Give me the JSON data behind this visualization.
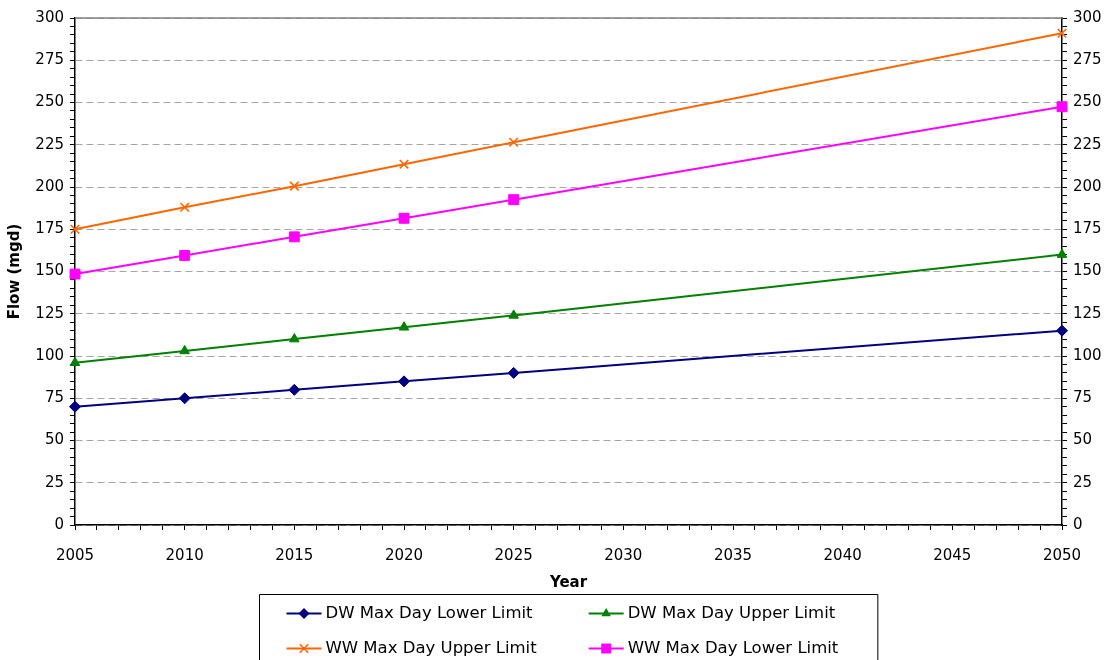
{
  "chart_data": {
    "type": "line",
    "xlabel": "Year",
    "ylabel": "Flow (mgd)",
    "x": [
      2005,
      2010,
      2015,
      2020,
      2025,
      2050
    ],
    "series": [
      {
        "name": "DW Max Day Lower Limit",
        "color": "#000080",
        "marker": "diamond",
        "values": [
          70,
          75,
          80,
          85,
          90,
          115
        ]
      },
      {
        "name": "DW Max Day Upper Limit",
        "color": "#008000",
        "marker": "triangle",
        "values": [
          96,
          103,
          110,
          117,
          124,
          160
        ]
      },
      {
        "name": "WW Max Day Upper Limit",
        "color": "#ff6600",
        "marker": "cross",
        "values": [
          175,
          188,
          200.5,
          213.5,
          226.5,
          291
        ]
      },
      {
        "name": "WW Max Day Lower Limit",
        "color": "#ff00ff",
        "marker": "square",
        "values": [
          148.5,
          159.5,
          170.5,
          181.5,
          192.5,
          247.5
        ]
      }
    ],
    "xlim": [
      2005,
      2050
    ],
    "xticks": [
      2005,
      {
        "value": 2006,
        "label": null
      },
      {
        "value": 2007,
        "label": null
      },
      {
        "value": 2008,
        "label": null
      },
      {
        "value": 2009,
        "label": null
      },
      2010,
      {
        "value": 2011,
        "label": null
      },
      {
        "value": 2012,
        "label": null
      },
      {
        "value": 2013,
        "label": null
      },
      {
        "value": 2014,
        "label": null
      },
      2015,
      {
        "value": 2016,
        "label": null
      },
      {
        "value": 2017,
        "label": null
      },
      {
        "value": 2018,
        "label": null
      },
      {
        "value": 2019,
        "label": null
      },
      2020,
      {
        "value": 2021,
        "label": null
      },
      {
        "value": 2022,
        "label": null
      },
      {
        "value": 2023,
        "label": null
      },
      {
        "value": 2024,
        "label": null
      },
      2025,
      {
        "value": 2026,
        "label": null
      },
      {
        "value": 2027,
        "label": null
      },
      {
        "value": 2028,
        "label": null
      },
      {
        "value": 2029,
        "label": null
      },
      2030,
      {
        "value": 2031,
        "label": null
      },
      {
        "value": 2032,
        "label": null
      },
      {
        "value": 2033,
        "label": null
      },
      {
        "value": 2034,
        "label": null
      },
      2035,
      {
        "value": 2036,
        "label": null
      },
      {
        "value": 2037,
        "label": null
      },
      {
        "value": 2038,
        "label": null
      },
      {
        "value": 2039,
        "label": null
      },
      2040,
      {
        "value": 2041,
        "label": null
      },
      {
        "value": 2042,
        "label": null
      },
      {
        "value": 2043,
        "label": null
      },
      {
        "value": 2044,
        "label": null
      },
      2045,
      {
        "value": 2046,
        "label": null
      },
      {
        "value": 2047,
        "label": null
      },
      {
        "value": 2048,
        "label": null
      },
      {
        "value": 2049,
        "label": null
      },
      2050
    ],
    "ylim": [
      0,
      300
    ],
    "yticks": [
      0,
      {
        "value": 5,
        "label": null
      },
      {
        "value": 10,
        "label": null
      },
      {
        "value": 15,
        "label": null
      },
      {
        "value": 20,
        "label": null
      },
      25,
      {
        "value": 30,
        "label": null
      },
      {
        "value": 35,
        "label": null
      },
      {
        "value": 40,
        "label": null
      },
      {
        "value": 45,
        "label": null
      },
      50,
      {
        "value": 55,
        "label": null
      },
      {
        "value": 60,
        "label": null
      },
      {
        "value": 65,
        "label": null
      },
      {
        "value": 70,
        "label": null
      },
      75,
      {
        "value": 80,
        "label": null
      },
      {
        "value": 85,
        "label": null
      },
      {
        "value": 90,
        "label": null
      },
      {
        "value": 95,
        "label": null
      },
      100,
      {
        "value": 105,
        "label": null
      },
      {
        "value": 110,
        "label": null
      },
      {
        "value": 115,
        "label": null
      },
      {
        "value": 120,
        "label": null
      },
      125,
      {
        "value": 130,
        "label": null
      },
      {
        "value": 135,
        "label": null
      },
      {
        "value": 140,
        "label": null
      },
      {
        "value": 145,
        "label": null
      },
      150,
      {
        "value": 155,
        "label": null
      },
      {
        "value": 160,
        "label": null
      },
      {
        "value": 165,
        "label": null
      },
      {
        "value": 170,
        "label": null
      },
      175,
      {
        "value": 180,
        "label": null
      },
      {
        "value": 185,
        "label": null
      },
      {
        "value": 190,
        "label": null
      },
      {
        "value": 195,
        "label": null
      },
      200,
      {
        "value": 205,
        "label": null
      },
      {
        "value": 210,
        "label": null
      },
      {
        "value": 215,
        "label": null
      },
      {
        "value": 220,
        "label": null
      },
      225,
      {
        "value": 230,
        "label": null
      },
      {
        "value": 235,
        "label": null
      },
      {
        "value": 240,
        "label": null
      },
      {
        "value": 245,
        "label": null
      },
      250,
      {
        "value": 255,
        "label": null
      },
      {
        "value": 260,
        "label": null
      },
      {
        "value": 265,
        "label": null
      },
      {
        "value": 270,
        "label": null
      },
      275,
      {
        "value": 280,
        "label": null
      },
      {
        "value": 285,
        "label": null
      },
      {
        "value": 290,
        "label": null
      },
      {
        "value": 295,
        "label": null
      },
      300
    ],
    "y2lim": [
      0,
      300
    ],
    "y2ticks": [
      0,
      {
        "value": 5,
        "label": null
      },
      {
        "value": 10,
        "label": null
      },
      {
        "value": 15,
        "label": null
      },
      {
        "value": 20,
        "label": null
      },
      25,
      {
        "value": 30,
        "label": null
      },
      {
        "value": 35,
        "label": null
      },
      {
        "value": 40,
        "label": null
      },
      {
        "value": 45,
        "label": null
      },
      50,
      {
        "value": 55,
        "label": null
      },
      {
        "value": 60,
        "label": null
      },
      {
        "value": 65,
        "label": null
      },
      {
        "value": 70,
        "label": null
      },
      75,
      {
        "value": 80,
        "label": null
      },
      {
        "value": 85,
        "label": null
      },
      {
        "value": 90,
        "label": null
      },
      {
        "value": 95,
        "label": null
      },
      100,
      {
        "value": 105,
        "label": null
      },
      {
        "value": 110,
        "label": null
      },
      {
        "value": 115,
        "label": null
      },
      {
        "value": 120,
        "label": null
      },
      125,
      {
        "value": 130,
        "label": null
      },
      {
        "value": 135,
        "label": null
      },
      {
        "value": 140,
        "label": null
      },
      {
        "value": 145,
        "label": null
      },
      150,
      {
        "value": 155,
        "label": null
      },
      {
        "value": 160,
        "label": null
      },
      {
        "value": 165,
        "label": null
      },
      {
        "value": 170,
        "label": null
      },
      175,
      {
        "value": 180,
        "label": null
      },
      {
        "value": 185,
        "label": null
      },
      {
        "value": 190,
        "label": null
      },
      {
        "value": 195,
        "label": null
      },
      200,
      {
        "value": 205,
        "label": null
      },
      {
        "value": 210,
        "label": null
      },
      {
        "value": 215,
        "label": null
      },
      {
        "value": 220,
        "label": null
      },
      225,
      {
        "value": 230,
        "label": null
      },
      {
        "value": 235,
        "label": null
      },
      {
        "value": 240,
        "label": null
      },
      {
        "value": 245,
        "label": null
      },
      250,
      {
        "value": 255,
        "label": null
      },
      {
        "value": 260,
        "label": null
      },
      {
        "value": 265,
        "label": null
      },
      {
        "value": 270,
        "label": null
      },
      275,
      {
        "value": 280,
        "label": null
      },
      {
        "value": 285,
        "label": null
      },
      {
        "value": 290,
        "label": null
      },
      {
        "value": 295,
        "label": null
      },
      300
    ],
    "grid": "y",
    "legend": "bottom"
  }
}
